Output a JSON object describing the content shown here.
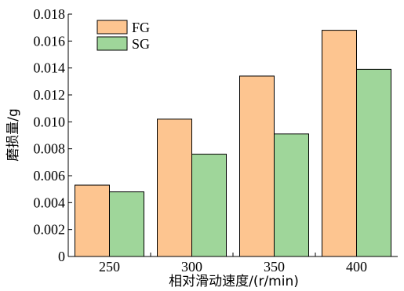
{
  "chart_data": {
    "type": "bar",
    "xlabel": "相对滑动速度/(r/min)",
    "ylabel": "磨损量/g",
    "categories": [
      "250",
      "300",
      "350",
      "400"
    ],
    "ylim": [
      0,
      0.018
    ],
    "yticks": [
      "0",
      "0.002",
      "0.004",
      "0.006",
      "0.008",
      "0.010",
      "0.012",
      "0.014",
      "0.016",
      "0.018"
    ],
    "legend_position": "top-left",
    "grid": false,
    "series": [
      {
        "name": "FG",
        "color": "#fdc590",
        "values": [
          0.0053,
          0.0102,
          0.0134,
          0.0168
        ]
      },
      {
        "name": "SG",
        "color": "#9fd69a",
        "values": [
          0.0048,
          0.0076,
          0.0091,
          0.0139
        ]
      }
    ]
  }
}
